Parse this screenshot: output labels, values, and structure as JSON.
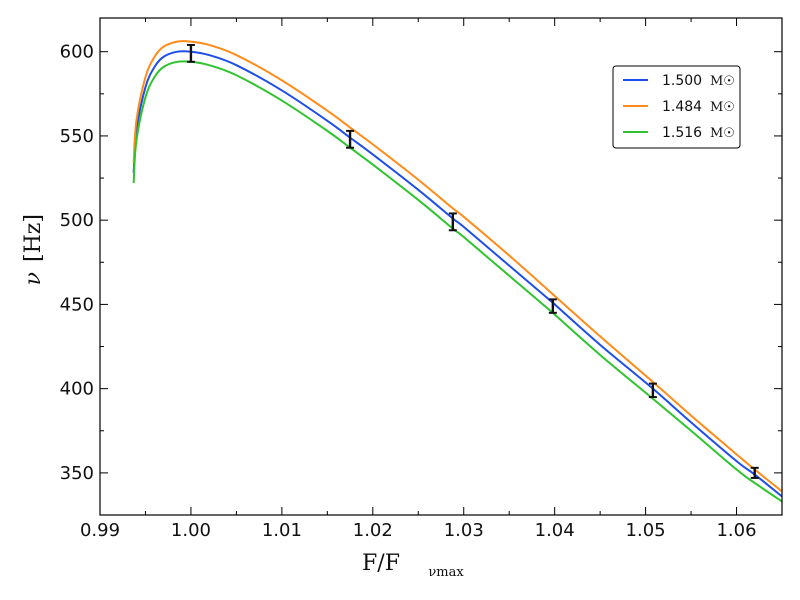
{
  "chart_data": {
    "type": "line",
    "xlabel": "F/F",
    "xlabel_sub": "νmax",
    "ylabel": "ν",
    "ylabel_unit": "[Hz]",
    "xlim": [
      0.99,
      1.065
    ],
    "ylim": [
      325,
      620
    ],
    "x_ticks": [
      0.99,
      1.0,
      1.01,
      1.02,
      1.03,
      1.04,
      1.05,
      1.06
    ],
    "x_tick_labels": [
      "0.99",
      "1.00",
      "1.01",
      "1.02",
      "1.03",
      "1.04",
      "1.05",
      "1.06"
    ],
    "y_ticks": [
      350,
      400,
      450,
      500,
      550,
      600
    ],
    "y_tick_labels": [
      "350",
      "400",
      "450",
      "500",
      "550",
      "600"
    ],
    "legend_position": "upper-right",
    "legend_unit": "M☉",
    "series": [
      {
        "name": "1.500",
        "color": "#1f4ee8",
        "x": [
          0.9937,
          0.994,
          0.995,
          0.996,
          0.997,
          0.9985,
          1.0,
          1.002,
          1.005,
          1.01,
          1.015,
          1.0175,
          1.02,
          1.025,
          1.0288,
          1.03,
          1.035,
          1.0398,
          1.04,
          1.045,
          1.0508,
          1.055,
          1.06,
          1.062,
          1.065
        ],
        "y": [
          528,
          553,
          579,
          591,
          597,
          600,
          600,
          598,
          592,
          577,
          559,
          549,
          539,
          518,
          501,
          496,
          473,
          451,
          450,
          426,
          400,
          380,
          357,
          349,
          336
        ]
      },
      {
        "name": "1.484",
        "color": "#ff8c1a",
        "x": [
          0.9937,
          0.994,
          0.995,
          0.996,
          0.997,
          0.9985,
          1.0,
          1.002,
          1.005,
          1.01,
          1.015,
          1.0175,
          1.02,
          1.025,
          1.0288,
          1.03,
          1.035,
          1.0398,
          1.04,
          1.045,
          1.0508,
          1.055,
          1.06,
          1.062,
          1.065
        ],
        "y": [
          534,
          559,
          585,
          597,
          603,
          606,
          606,
          604,
          598,
          583,
          565,
          555,
          545,
          524,
          507,
          502,
          479,
          456,
          455,
          431,
          404,
          384,
          361,
          352,
          339
        ]
      },
      {
        "name": "1.516",
        "color": "#2fc42f",
        "x": [
          0.9937,
          0.994,
          0.995,
          0.996,
          0.997,
          0.9985,
          1.0,
          1.002,
          1.005,
          1.01,
          1.015,
          1.0175,
          1.02,
          1.025,
          1.0288,
          1.03,
          1.035,
          1.0398,
          1.04,
          1.045,
          1.0508,
          1.055,
          1.06,
          1.062,
          1.065
        ],
        "y": [
          522,
          547,
          573,
          585,
          591,
          594,
          594,
          592,
          586,
          571,
          553,
          543,
          533,
          512,
          495,
          490,
          467,
          445,
          444,
          420,
          394,
          375,
          352,
          344,
          333
        ]
      }
    ],
    "error_points": [
      {
        "x": 1.0,
        "y": 599,
        "err": 5
      },
      {
        "x": 1.0175,
        "y": 548,
        "err": 5
      },
      {
        "x": 1.0288,
        "y": 499,
        "err": 5
      },
      {
        "x": 1.0398,
        "y": 449,
        "err": 4
      },
      {
        "x": 1.0508,
        "y": 399,
        "err": 4
      },
      {
        "x": 1.062,
        "y": 350,
        "err": 3
      }
    ]
  }
}
